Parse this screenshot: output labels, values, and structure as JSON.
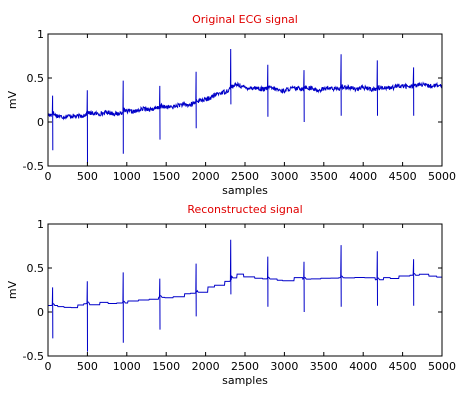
{
  "colors": {
    "signal": "#0000c8",
    "title": "#e00000",
    "axis": "#000000"
  },
  "chart_data": [
    {
      "type": "line",
      "title": "Original ECG signal",
      "xlabel": "samples",
      "ylabel": "mV",
      "xlim": [
        0,
        5000
      ],
      "ylim": [
        -0.5,
        1
      ],
      "xticks": [
        0,
        500,
        1000,
        1500,
        2000,
        2500,
        3000,
        3500,
        4000,
        4500,
        5000
      ],
      "yticks": [
        -0.5,
        0,
        0.5,
        1
      ],
      "ytick_labels": [
        "-0.5",
        "0",
        "0.5",
        "1"
      ],
      "grid": false,
      "series": [
        {
          "style": "noisy",
          "baseline": [
            [
              0,
              0.08
            ],
            [
              300,
              0.06
            ],
            [
              600,
              0.1
            ],
            [
              900,
              0.1
            ],
            [
              1200,
              0.14
            ],
            [
              1500,
              0.17
            ],
            [
              1800,
              0.2
            ],
            [
              2000,
              0.26
            ],
            [
              2200,
              0.33
            ],
            [
              2400,
              0.42
            ],
            [
              2600,
              0.38
            ],
            [
              2800,
              0.38
            ],
            [
              3000,
              0.36
            ],
            [
              3200,
              0.39
            ],
            [
              3400,
              0.37
            ],
            [
              3600,
              0.38
            ],
            [
              3800,
              0.39
            ],
            [
              4000,
              0.38
            ],
            [
              4200,
              0.38
            ],
            [
              4400,
              0.4
            ],
            [
              4600,
              0.41
            ],
            [
              4800,
              0.42
            ],
            [
              5000,
              0.4
            ]
          ],
          "beats": [
            {
              "x": 60,
              "peak": 0.3,
              "trough": -0.32
            },
            {
              "x": 500,
              "peak": 0.36,
              "trough": -0.47
            },
            {
              "x": 955,
              "peak": 0.47,
              "trough": -0.36
            },
            {
              "x": 1420,
              "peak": 0.41,
              "trough": -0.2
            },
            {
              "x": 1880,
              "peak": 0.57,
              "trough": -0.07
            },
            {
              "x": 2320,
              "peak": 0.83,
              "trough": 0.2
            },
            {
              "x": 2790,
              "peak": 0.65,
              "trough": 0.06
            },
            {
              "x": 3250,
              "peak": 0.59,
              "trough": 0.0
            },
            {
              "x": 3720,
              "peak": 0.77,
              "trough": 0.07
            },
            {
              "x": 4180,
              "peak": 0.7,
              "trough": 0.07
            },
            {
              "x": 4640,
              "peak": 0.62,
              "trough": 0.07
            }
          ]
        }
      ]
    },
    {
      "type": "line",
      "title": "Reconstructed signal",
      "xlabel": "samples",
      "ylabel": "mV",
      "xlim": [
        0,
        5000
      ],
      "ylim": [
        -0.5,
        1
      ],
      "xticks": [
        0,
        500,
        1000,
        1500,
        2000,
        2500,
        3000,
        3500,
        4000,
        4500,
        5000
      ],
      "yticks": [
        -0.5,
        0,
        0.5,
        1
      ],
      "ytick_labels": [
        "-0.5",
        "0",
        "0.5",
        "1"
      ],
      "grid": false,
      "series": [
        {
          "style": "stepped",
          "baseline": [
            [
              0,
              0.08
            ],
            [
              300,
              0.06
            ],
            [
              600,
              0.1
            ],
            [
              900,
              0.1
            ],
            [
              1200,
              0.14
            ],
            [
              1500,
              0.17
            ],
            [
              1800,
              0.2
            ],
            [
              2000,
              0.26
            ],
            [
              2200,
              0.33
            ],
            [
              2400,
              0.42
            ],
            [
              2600,
              0.38
            ],
            [
              2800,
              0.38
            ],
            [
              3000,
              0.36
            ],
            [
              3200,
              0.39
            ],
            [
              3400,
              0.37
            ],
            [
              3600,
              0.38
            ],
            [
              3800,
              0.39
            ],
            [
              4000,
              0.38
            ],
            [
              4200,
              0.38
            ],
            [
              4400,
              0.4
            ],
            [
              4600,
              0.41
            ],
            [
              4800,
              0.42
            ],
            [
              5000,
              0.4
            ]
          ],
          "beats": [
            {
              "x": 60,
              "peak": 0.28,
              "trough": -0.3
            },
            {
              "x": 500,
              "peak": 0.35,
              "trough": -0.45
            },
            {
              "x": 955,
              "peak": 0.45,
              "trough": -0.35
            },
            {
              "x": 1420,
              "peak": 0.38,
              "trough": -0.2
            },
            {
              "x": 1880,
              "peak": 0.55,
              "trough": -0.05
            },
            {
              "x": 2320,
              "peak": 0.82,
              "trough": 0.2
            },
            {
              "x": 2790,
              "peak": 0.63,
              "trough": 0.06
            },
            {
              "x": 3250,
              "peak": 0.57,
              "trough": 0.0
            },
            {
              "x": 3720,
              "peak": 0.76,
              "trough": 0.06
            },
            {
              "x": 4180,
              "peak": 0.69,
              "trough": 0.07
            },
            {
              "x": 4640,
              "peak": 0.6,
              "trough": 0.07
            }
          ]
        }
      ]
    }
  ]
}
